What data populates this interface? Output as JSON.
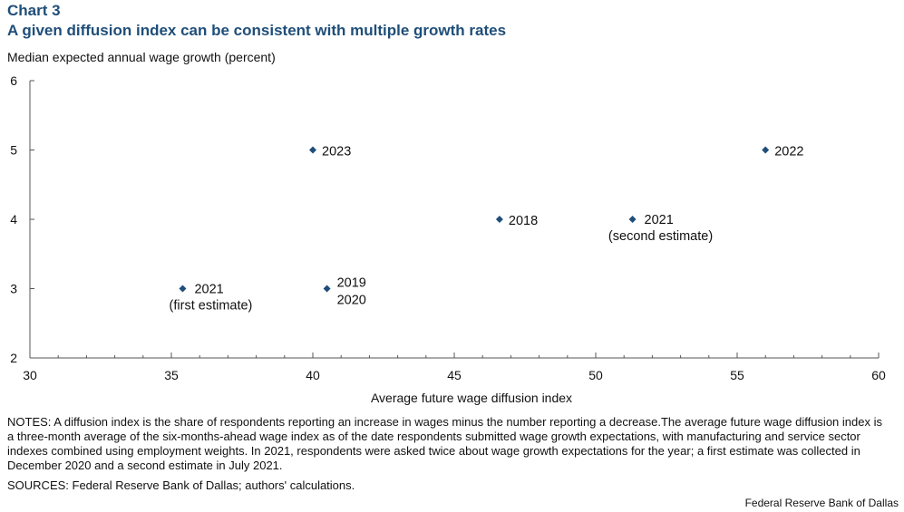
{
  "header": {
    "chart_label": "Chart 3",
    "title": "A given diffusion index can be consistent with multiple growth rates"
  },
  "chart_data": {
    "type": "scatter",
    "title": "A given diffusion index can be consistent with multiple growth rates",
    "xlabel": "Average future wage diffusion index",
    "ylabel": "Median expected annual wage growth (percent)",
    "xlim": [
      30,
      60
    ],
    "ylim": [
      2,
      6
    ],
    "x_ticks": [
      30,
      35,
      40,
      45,
      50,
      55,
      60
    ],
    "y_ticks": [
      2,
      3,
      4,
      5,
      6
    ],
    "grid": false,
    "marker_color": "#1f4e79",
    "points": [
      {
        "x": 35.4,
        "y": 3,
        "labels": [
          "2021",
          "(first estimate)"
        ],
        "label_style": "right-below"
      },
      {
        "x": 40.0,
        "y": 5,
        "labels": [
          "2023"
        ],
        "label_style": "right"
      },
      {
        "x": 40.5,
        "y": 3,
        "labels": [
          "2019",
          "2020"
        ],
        "label_style": "stacked-right"
      },
      {
        "x": 46.6,
        "y": 4,
        "labels": [
          "2018"
        ],
        "label_style": "right"
      },
      {
        "x": 51.3,
        "y": 4,
        "labels": [
          "2021",
          "(second estimate)"
        ],
        "label_style": "right-below"
      },
      {
        "x": 56.0,
        "y": 5,
        "labels": [
          "2022"
        ],
        "label_style": "right"
      }
    ]
  },
  "notes": "NOTES: A diffusion index is the share of respondents reporting an increase in wages minus the number reporting a decrease.The average future wage diffusion index is a three-month average of the six-months-ahead wage index as of the date respondents submitted wage growth expectations, with manufacturing and service sector indexes combined using employment weights. In 2021, respondents were asked twice about wage growth expectations for the year; a first estimate was collected in December 2020 and a second estimate in July 2021.",
  "sources": "SOURCES: Federal Reserve Bank of Dallas; authors' calculations.",
  "credit": "Federal  Reserve  Bank of Dallas"
}
